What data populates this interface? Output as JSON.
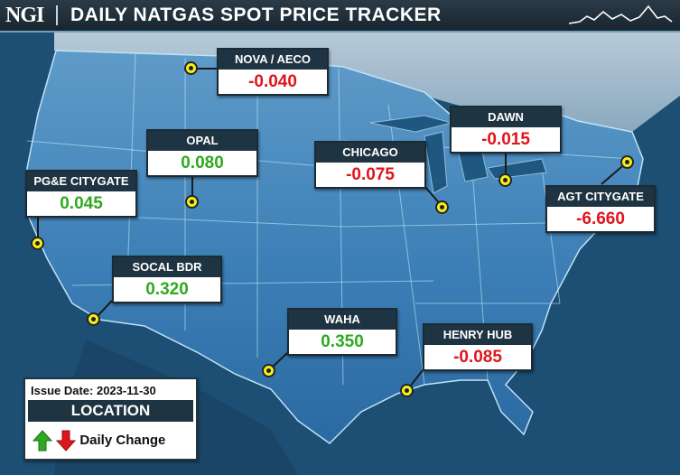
{
  "header": {
    "logo": "NGI",
    "title": "DAILY NATGAS SPOT PRICE TRACKER",
    "logo_icon": "price-trend-line-icon"
  },
  "locations": [
    {
      "name": "NOVA / AECO",
      "change": "-0.040",
      "direction": "down"
    },
    {
      "name": "DAWN",
      "change": "-0.015",
      "direction": "down"
    },
    {
      "name": "OPAL",
      "change": "0.080",
      "direction": "up"
    },
    {
      "name": "CHICAGO",
      "change": "-0.075",
      "direction": "down"
    },
    {
      "name": "PG&E CITYGATE",
      "change": "0.045",
      "direction": "up"
    },
    {
      "name": "AGT CITYGATE",
      "change": "-6.660",
      "direction": "down"
    },
    {
      "name": "SOCAL BDR",
      "change": "0.320",
      "direction": "up"
    },
    {
      "name": "WAHA",
      "change": "0.350",
      "direction": "up"
    },
    {
      "name": "HENRY HUB",
      "change": "-0.085",
      "direction": "down"
    }
  ],
  "legend": {
    "issue_date": "Issue Date: 2023-11-30",
    "location_label": "LOCATION",
    "change_label": "Daily Change",
    "up_icon": "green-up-arrow-icon",
    "down_icon": "red-down-arrow-icon"
  },
  "colors": {
    "negative": "#e0151b",
    "positive": "#2faa1e",
    "marker": "#f3ef1d",
    "label_bg": "#1f3442"
  }
}
